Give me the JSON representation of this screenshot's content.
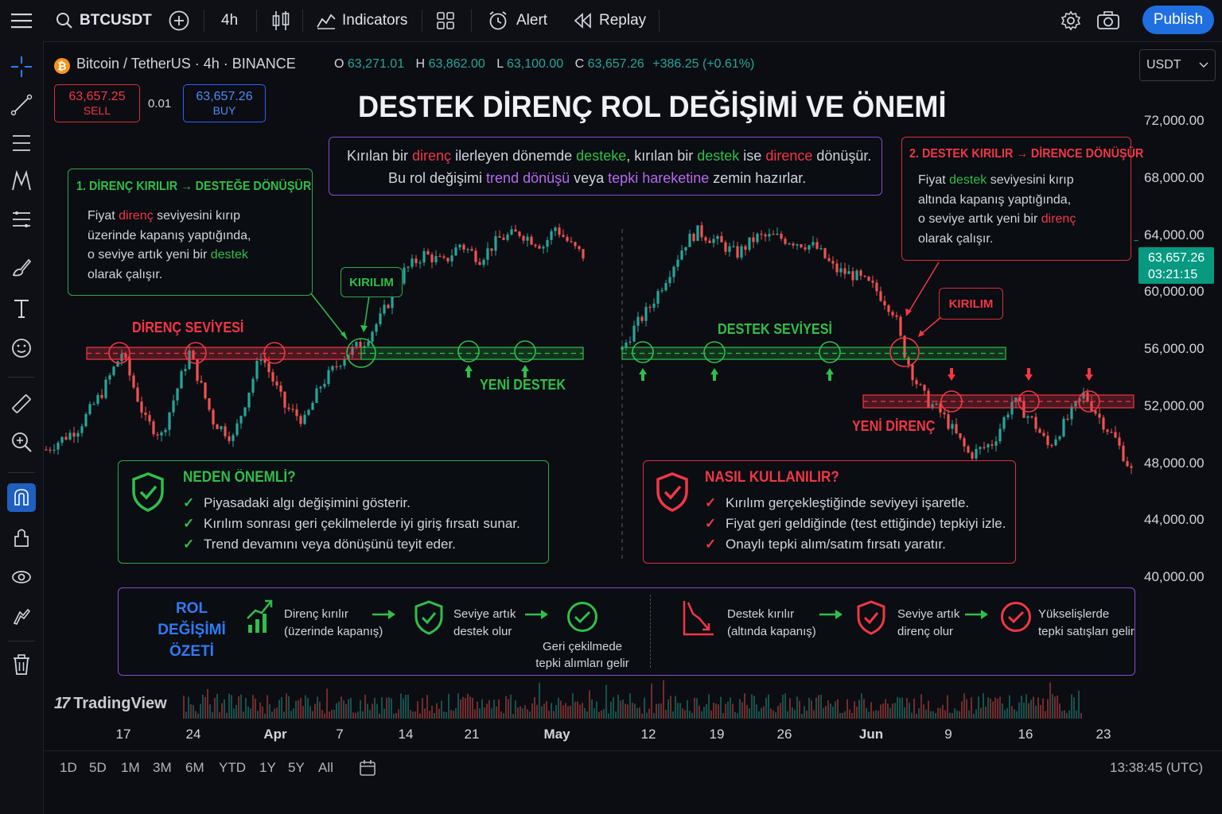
{
  "topbar": {
    "symbol": "BTCUSDT",
    "interval": "4h",
    "indicators_label": "Indicators",
    "alert_label": "Alert",
    "replay_label": "Replay",
    "publish_label": "Publish"
  },
  "legend": {
    "title": "Bitcoin / TetherUS · 4h · BINANCE",
    "o_label": "O",
    "o_value": "63,271.01",
    "h_label": "H",
    "h_value": "63,862.00",
    "l_label": "L",
    "l_value": "63,100.00",
    "c_label": "C",
    "c_value": "63,657.26",
    "change": "+386.25 (+0.61%)"
  },
  "order": {
    "sell_price": "63,657.25",
    "sell_label": "SELL",
    "spread": "0.01",
    "buy_price": "63,657.26",
    "buy_label": "BUY"
  },
  "currency_select": "USDT",
  "headline": "DESTEK DİRENÇ ROL DEĞİŞİMİ VE ÖNEMİ",
  "intro": {
    "line1": [
      "Kırılan bir ",
      "direnç",
      " ilerleyen dönemde ",
      "desteke",
      ", kırılan bir ",
      "destek",
      " ise ",
      "dirence",
      " dönüşür."
    ],
    "line2": [
      "Bu rol değişimi ",
      "trend dönüşü",
      " veya ",
      "tepki hareketine",
      " zemin hazırlar."
    ]
  },
  "box_left": {
    "title": "1. DİRENÇ KIRILIR → DESTEĞE DÖNÜŞÜR",
    "lines": [
      [
        "Fiyat ",
        "direnç",
        " seviyesini kırıp"
      ],
      [
        "üzerinde kapanış yaptığında,"
      ],
      [
        "o seviye artık yeni bir ",
        "destek"
      ],
      [
        "olarak çalışır."
      ]
    ]
  },
  "box_right": {
    "title": "2. DESTEK KIRILIR → DİRENCE DÖNÜŞÜR",
    "lines": [
      [
        "Fiyat ",
        "destek",
        " seviyesini kırıp"
      ],
      [
        "altında kapanış yaptığında,"
      ],
      [
        "o seviye artık yeni bir ",
        "direnç"
      ],
      [
        "olarak çalışır."
      ]
    ]
  },
  "labels": {
    "kirilim_left": "KIRILIM",
    "kirilim_right": "KIRILIM",
    "direnc_seviyesi": "DİRENÇ SEVİYESİ",
    "yeni_destek": "YENİ DESTEK",
    "destek_seviyesi": "DESTEK SEVİYESİ",
    "yeni_direnc": "YENİ DİRENÇ"
  },
  "why": {
    "title": "NEDEN ÖNEMLİ?",
    "items": [
      "Piyasadaki algı değişimini gösterir.",
      "Kırılım sonrası geri çekilmelerde iyi giriş fırsatı sunar.",
      "Trend devamını veya dönüşünü teyit eder."
    ]
  },
  "how": {
    "title": "NASIL KULLANILIR?",
    "items": [
      "Kırılım gerçekleştiğinde seviyeyi işaretle.",
      "Fiyat geri geldiğinde (test ettiğinde) tepkiyi izle.",
      "Onaylı tepki alım/satım fırsatı yaratır."
    ]
  },
  "summary": {
    "title1": "ROL DEĞİŞİMİ",
    "title2": "ÖZETİ",
    "s1a": "Direnç kırılır",
    "s1b": "(üzerinde kapanış)",
    "s2a": "Seviye artık",
    "s2b": "destek olur",
    "s3a": "Geri çekilmede",
    "s3b": "tepki alımları gelir",
    "s4a": "Destek kırılır",
    "s4b": "(altında kapanış)",
    "s5a": "Seviye artık",
    "s5b": "direnç olur",
    "s6a": "Yükselişlerde",
    "s6b": "tepki satışları gelir"
  },
  "price_axis": [
    "72,000.00",
    "68,000.00",
    "64,000.00",
    "60,000.00",
    "56,000.00",
    "52,000.00",
    "48,000.00",
    "44,000.00",
    "40,000.00"
  ],
  "price_tag": {
    "price": "63,657.26",
    "countdown": "03:21:15"
  },
  "time_axis": [
    "17",
    "24",
    "Apr",
    "7",
    "14",
    "21",
    "May",
    "12",
    "19",
    "26",
    "Jun",
    "9",
    "16",
    "23"
  ],
  "watermark": "TradingView",
  "timeframes": [
    "1D",
    "5D",
    "1M",
    "3M",
    "6M",
    "YTD",
    "1Y",
    "5Y",
    "All"
  ],
  "clock": "13:38:45 (UTC)",
  "colors": {
    "up": "#26a69a",
    "down": "#ef5350",
    "accent": "#2962ff",
    "green": "#2fbf4a",
    "red": "#f23645",
    "purple": "#b868f0"
  },
  "chart_data": {
    "type": "candlestick",
    "symbol": "BTCUSDT",
    "interval": "4h",
    "ylim": [
      40000,
      72000
    ],
    "yticks": [
      72000,
      68000,
      64000,
      60000,
      56000,
      52000,
      48000,
      44000,
      40000
    ],
    "last_price": 63657.26,
    "levels": [
      {
        "label": "DİRENÇ SEVİYESİ",
        "price": 56000,
        "role": "resistance → support"
      },
      {
        "label": "DESTEK SEVİYESİ",
        "price": 56000,
        "role": "support → resistance"
      },
      {
        "label": "YENİ DİRENÇ",
        "price": 52700,
        "role": "new resistance"
      }
    ],
    "left_path": [
      [
        0,
        49000
      ],
      [
        40,
        50500
      ],
      [
        70,
        53000
      ],
      [
        95,
        55800
      ],
      [
        125,
        51000
      ],
      [
        145,
        50000
      ],
      [
        180,
        55800
      ],
      [
        210,
        51000
      ],
      [
        235,
        49800
      ],
      [
        270,
        55700
      ],
      [
        300,
        52000
      ],
      [
        325,
        51000
      ],
      [
        345,
        53500
      ],
      [
        375,
        55600
      ],
      [
        400,
        56600
      ],
      [
        420,
        58200
      ],
      [
        450,
        61500
      ],
      [
        475,
        62700
      ],
      [
        500,
        62100
      ],
      [
        520,
        63400
      ],
      [
        545,
        62400
      ],
      [
        570,
        63800
      ],
      [
        595,
        64200
      ],
      [
        625,
        63300
      ],
      [
        640,
        64600
      ],
      [
        660,
        63300
      ],
      [
        675,
        62600
      ]
    ],
    "right_path": [
      [
        0,
        56000
      ],
      [
        15,
        57500
      ],
      [
        35,
        59000
      ],
      [
        60,
        61500
      ],
      [
        80,
        63500
      ],
      [
        95,
        64300
      ],
      [
        120,
        63600
      ],
      [
        145,
        62700
      ],
      [
        170,
        63900
      ],
      [
        195,
        63900
      ],
      [
        225,
        63500
      ],
      [
        245,
        63200
      ],
      [
        270,
        61600
      ],
      [
        295,
        61200
      ],
      [
        320,
        60300
      ],
      [
        345,
        58600
      ],
      [
        355,
        56200
      ],
      [
        370,
        54000
      ],
      [
        385,
        52500
      ],
      [
        405,
        51500
      ],
      [
        440,
        48600
      ],
      [
        470,
        49500
      ],
      [
        495,
        52500
      ],
      [
        520,
        51000
      ],
      [
        540,
        49200
      ],
      [
        565,
        51200
      ],
      [
        585,
        52900
      ],
      [
        605,
        51200
      ],
      [
        625,
        49700
      ],
      [
        645,
        47500
      ]
    ]
  }
}
